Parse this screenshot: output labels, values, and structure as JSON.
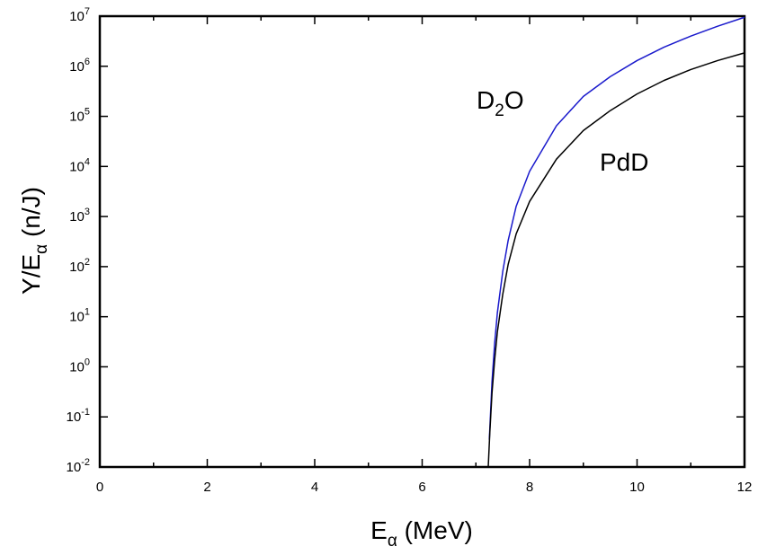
{
  "chart_data": {
    "type": "line",
    "xlabel": {
      "main": "E",
      "sub": "α",
      "rest": " (MeV)"
    },
    "ylabel": {
      "main": "Y/E",
      "sub": "α",
      "rest": " (n/J)"
    },
    "xlim": [
      0,
      12
    ],
    "ylim_log10": [
      -2,
      7
    ],
    "yscale": "log",
    "grid": false,
    "x_ticks": [
      "0",
      "2",
      "4",
      "6",
      "8",
      "10",
      "12"
    ],
    "y_ticks": [
      {
        "base": "10",
        "exp": "-2"
      },
      {
        "base": "10",
        "exp": "-1"
      },
      {
        "base": "10",
        "exp": "0"
      },
      {
        "base": "10",
        "exp": "1"
      },
      {
        "base": "10",
        "exp": "2"
      },
      {
        "base": "10",
        "exp": "3"
      },
      {
        "base": "10",
        "exp": "4"
      },
      {
        "base": "10",
        "exp": "5"
      },
      {
        "base": "10",
        "exp": "6"
      },
      {
        "base": "10",
        "exp": "7"
      }
    ],
    "series": [
      {
        "name": "D2O",
        "color": "#1a1acc",
        "points": [
          [
            7.25,
            0.035
          ],
          [
            7.3,
            0.5
          ],
          [
            7.35,
            3
          ],
          [
            7.4,
            12
          ],
          [
            7.5,
            80
          ],
          [
            7.6,
            330
          ],
          [
            7.75,
            1600
          ],
          [
            8.0,
            8000
          ],
          [
            8.5,
            65000
          ],
          [
            9.0,
            250000
          ],
          [
            9.5,
            620000
          ],
          [
            10.0,
            1300000
          ],
          [
            10.5,
            2400000
          ],
          [
            11.0,
            4000000
          ],
          [
            11.5,
            6300000
          ],
          [
            12.0,
            9500000
          ]
        ]
      },
      {
        "name": "PdD",
        "color": "#000000",
        "points": [
          [
            7.23,
            0.01
          ],
          [
            7.26,
            0.05
          ],
          [
            7.3,
            0.3
          ],
          [
            7.35,
            1.4
          ],
          [
            7.4,
            5
          ],
          [
            7.5,
            28
          ],
          [
            7.6,
            110
          ],
          [
            7.75,
            450
          ],
          [
            8.0,
            2000
          ],
          [
            8.5,
            14000
          ],
          [
            9.0,
            52000
          ],
          [
            9.5,
            130000
          ],
          [
            10.0,
            280000
          ],
          [
            10.5,
            520000
          ],
          [
            11.0,
            860000
          ],
          [
            11.5,
            1300000
          ],
          [
            12.0,
            1850000
          ]
        ]
      }
    ],
    "annotations": [
      {
        "main": "D",
        "sub": "2",
        "rest": "O"
      },
      {
        "main": "PdD",
        "sub": "",
        "rest": ""
      }
    ]
  }
}
